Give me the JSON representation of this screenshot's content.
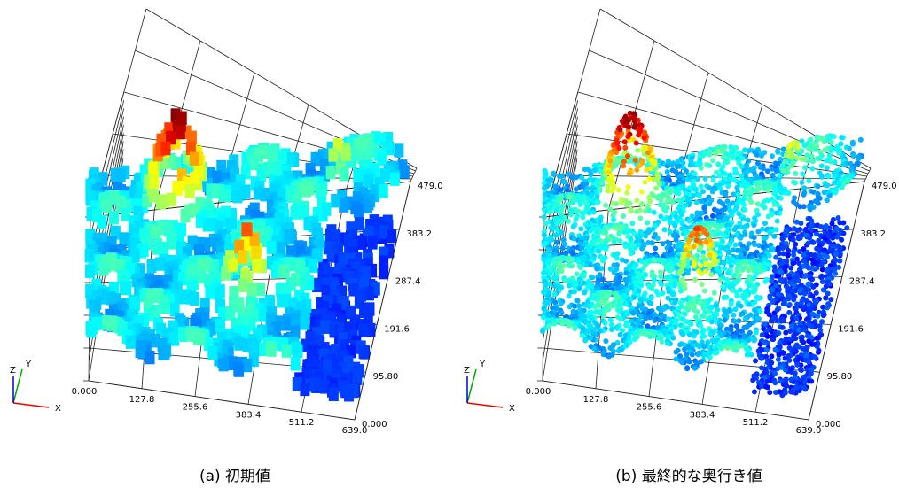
{
  "panels": [
    {
      "caption": "(a) 初期値",
      "x_ticks": [
        "0.000",
        "127.8",
        "255.6",
        "383.4",
        "511.2",
        "639.0"
      ],
      "y_ticks": [
        "0.000",
        "95.80",
        "191.6",
        "287.4",
        "383.2",
        "479.0"
      ],
      "axes": {
        "x": "X",
        "y": "Y",
        "z": "Z"
      }
    },
    {
      "caption": "(b) 最終的な奥行き値",
      "x_ticks": [
        "0.000",
        "127.8",
        "255.6",
        "383.4",
        "511.2",
        "639.0"
      ],
      "y_ticks": [
        "0.000",
        "95.80",
        "191.6",
        "287.4",
        "383.2",
        "479.0"
      ],
      "axes": {
        "x": "X",
        "y": "Y",
        "z": "Z"
      }
    }
  ]
}
